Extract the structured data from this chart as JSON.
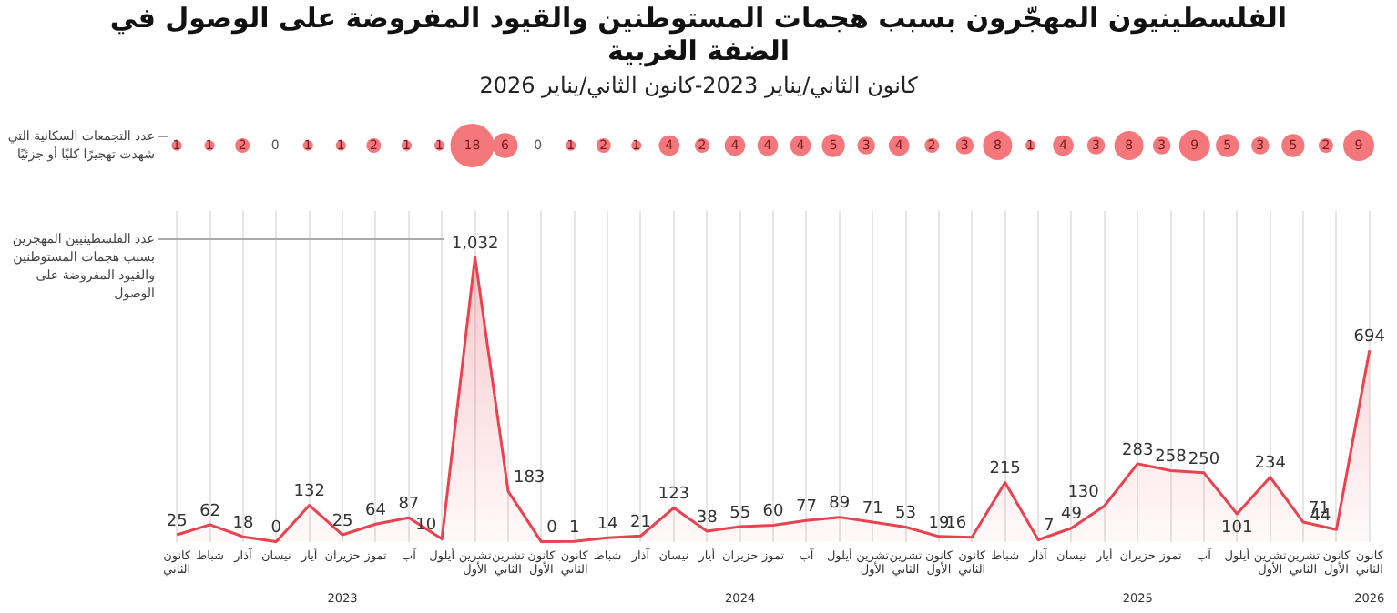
{
  "chart_data": [
    {
      "type": "other",
      "title": "الفلسطينيون المهجّرون بسبب هجمات المستوطنين والقيود المفروضة على الوصول في الضفة الغربية",
      "subtitle": "كانون الثاني/يناير 2023-كانون الثاني/يناير 2026",
      "ylabel": "عدد التجمعات السكانية التي شهدت تهجيرًا كليًا أو جزئيًا",
      "categories": [
        null,
        null,
        null,
        null,
        null,
        null,
        null,
        null,
        null,
        null,
        null,
        null,
        null,
        null,
        null,
        null,
        null,
        null,
        null,
        null,
        null,
        null,
        null,
        null,
        null,
        null,
        null,
        null,
        null,
        null,
        null,
        null,
        null,
        null,
        null,
        null,
        null
      ],
      "values": [
        1,
        1,
        2,
        0,
        1,
        1,
        2,
        1,
        1,
        18,
        6,
        0,
        1,
        2,
        1,
        4,
        2,
        4,
        4,
        4,
        5,
        3,
        4,
        2,
        3,
        8,
        1,
        4,
        3,
        8,
        3,
        9,
        5,
        3,
        5,
        2,
        9
      ],
      "color": "#f4777c",
      "data_labels": true
    },
    {
      "type": "area",
      "categories": [
        "كانون الثاني",
        "شباط",
        "آذار",
        "نيسان",
        "أيار",
        "حزيران\n2023",
        "تموز",
        "آب",
        "أيلول",
        "تشرين الأول",
        "تشرين الثاني",
        "كانون الأول",
        "كانون الثاني",
        "شباط",
        "آذار",
        "نيسان",
        "أيار",
        "حزيران\n2024",
        "تموز",
        "آب",
        "أيلول",
        "تشرين الأول",
        "تشرين الثاني",
        "كانون الأول",
        "كانون الثاني",
        "شباط",
        "آذار",
        "نيسان",
        "أيار",
        "حزيران\n2025",
        "تموز",
        "آب",
        "أيلول",
        "تشرين الأول",
        "تشرين الثاني",
        "كانون الأول",
        "كانون الثاني\n2026"
      ],
      "values": [
        25,
        62,
        18,
        0,
        132,
        25,
        64,
        87,
        10,
        1032,
        183,
        0,
        1,
        14,
        21,
        123,
        38,
        55,
        60,
        77,
        89,
        71,
        53,
        19,
        16,
        215,
        7,
        49,
        130,
        283,
        258,
        250,
        101,
        234,
        71,
        44,
        694
      ],
      "value_labels": [
        "25",
        "62",
        "18",
        "0",
        "132",
        "25",
        "64",
        "87",
        "10",
        "1,032",
        "183",
        "0",
        "1",
        "14",
        "21",
        "123",
        "38",
        "55",
        "60",
        "77",
        "89",
        "71",
        "53",
        "19",
        "16",
        "215",
        "7",
        "49",
        "130",
        "283",
        "258",
        "250",
        "101",
        "234",
        "71",
        "44",
        "694"
      ],
      "color": "#e8434f",
      "grid": "x",
      "tick_labels": "x",
      "marker": "none",
      "annotations": [
        "عدد الفلسطينيين المهجرين بسبب هجمات المستوطنين والقيود المفروضة على الوصول"
      ]
    }
  ]
}
